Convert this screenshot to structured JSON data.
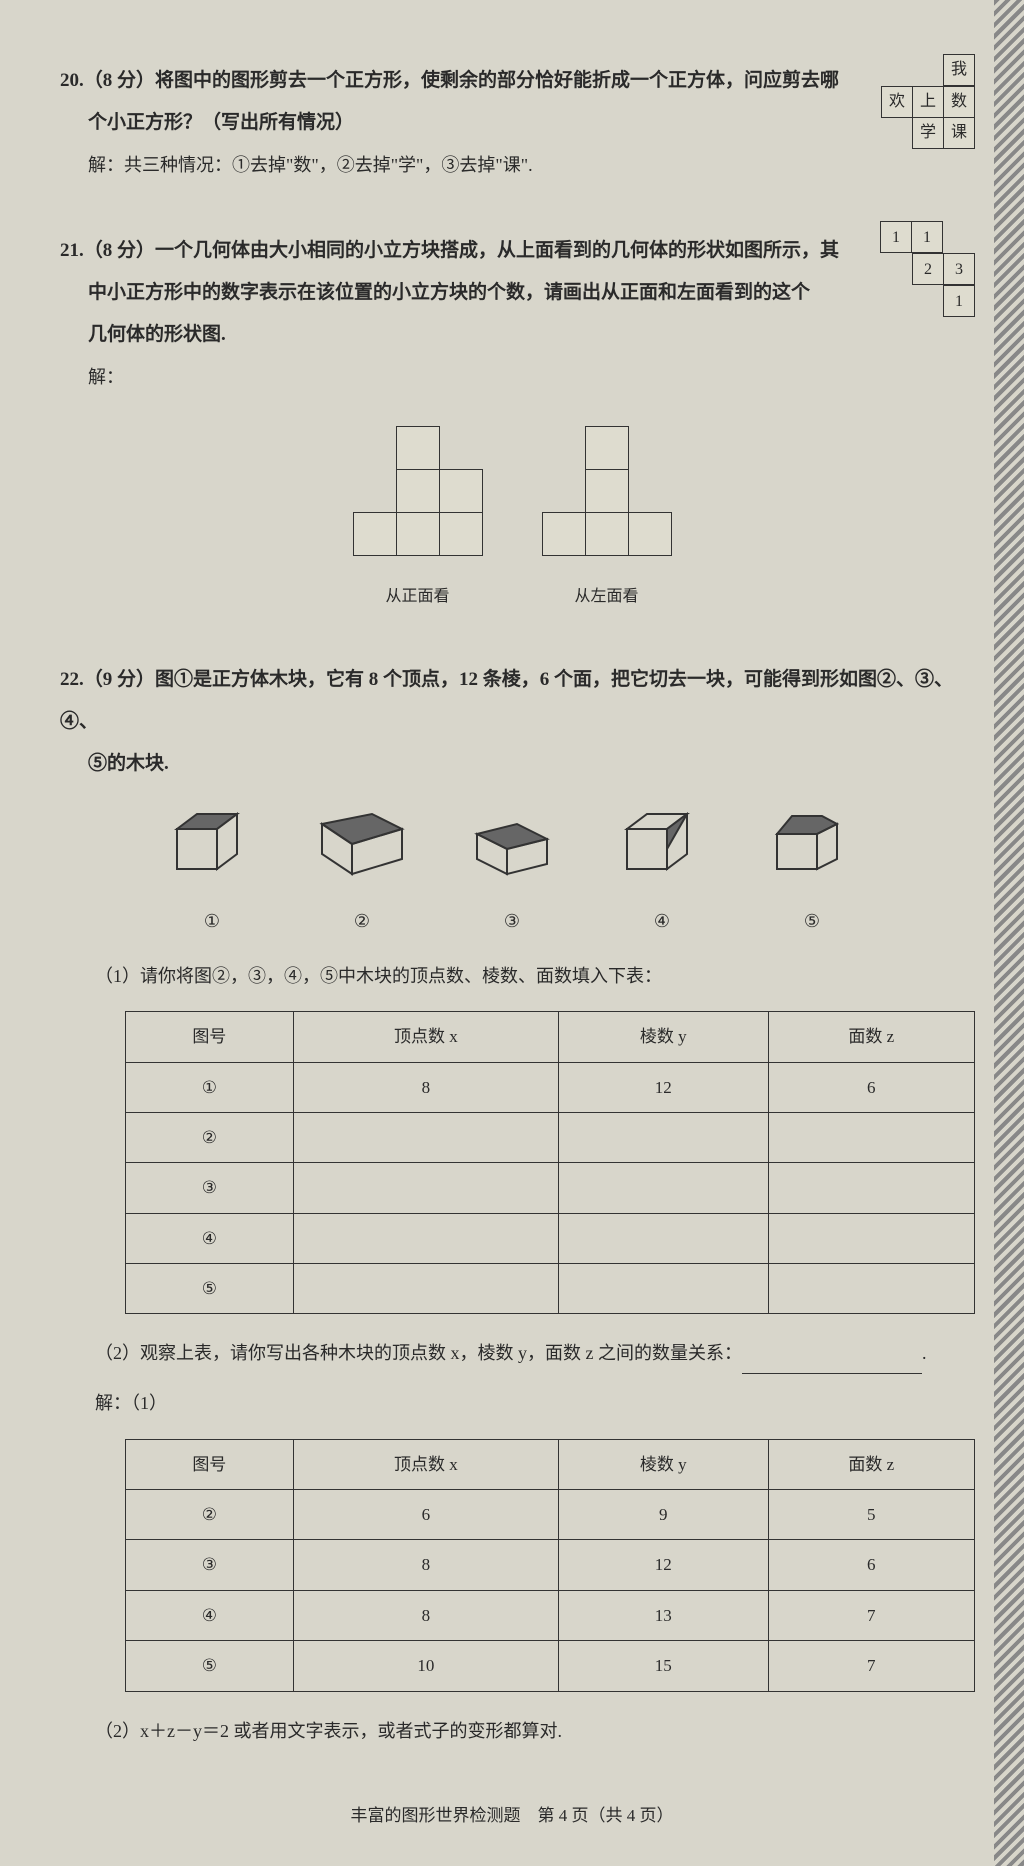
{
  "q20": {
    "text": "20.（8 分）将图中的图形剪去一个正方形，使剩余的部分恰好能折成一个正方体，问应剪去哪",
    "text_line2": "个小正方形？（写出所有情况）",
    "solution": "解：共三种情况：①去掉\"数\"，②去掉\"学\"，③去掉\"课\".",
    "grid": {
      "row1": [
        "",
        "",
        "我"
      ],
      "row2": [
        "欢",
        "上",
        "数"
      ],
      "row3": [
        "",
        "学",
        "课"
      ]
    }
  },
  "q21": {
    "text": "21.（8 分）一个几何体由大小相同的小立方块搭成，从上面看到的几何体的形状如图所示，其",
    "text_line2": "中小正方形中的数字表示在该位置的小立方块的个数，请画出从正面和左面看到的这个",
    "text_line3": "几何体的形状图.",
    "solution_label": "解：",
    "grid": {
      "r1": [
        "1",
        "1",
        ""
      ],
      "r2": [
        "",
        "2",
        "3"
      ],
      "r3": [
        "",
        "",
        "1"
      ]
    },
    "view1_label": "从正面看",
    "view2_label": "从左面看"
  },
  "q22": {
    "text": "22.（9 分）图①是正方体木块，它有 8 个顶点，12 条棱，6 个面，把它切去一块，可能得到形如图②、③、④、",
    "text_line2": "⑤的木块.",
    "cube_labels": [
      "①",
      "②",
      "③",
      "④",
      "⑤"
    ],
    "sub1": "（1）请你将图②，③，④，⑤中木块的顶点数、棱数、面数填入下表：",
    "table1": {
      "headers": [
        "图号",
        "顶点数 x",
        "棱数 y",
        "面数 z"
      ],
      "rows": [
        [
          "①",
          "8",
          "12",
          "6"
        ],
        [
          "②",
          "",
          "",
          ""
        ],
        [
          "③",
          "",
          "",
          ""
        ],
        [
          "④",
          "",
          "",
          ""
        ],
        [
          "⑤",
          "",
          "",
          ""
        ]
      ]
    },
    "sub2_prefix": "（2）观察上表，请你写出各种木块的顶点数 x，棱数 y，面数 z 之间的数量关系：",
    "sub2_suffix": ".",
    "solution_label": "解：（1）",
    "table2": {
      "headers": [
        "图号",
        "顶点数 x",
        "棱数 y",
        "面数 z"
      ],
      "rows": [
        [
          "②",
          "6",
          "9",
          "5"
        ],
        [
          "③",
          "8",
          "12",
          "6"
        ],
        [
          "④",
          "8",
          "13",
          "7"
        ],
        [
          "⑤",
          "10",
          "15",
          "7"
        ]
      ]
    },
    "sub2_answer": "（2）x＋z－y＝2 或者用文字表示，或者式子的变形都算对."
  },
  "footer": "丰富的图形世界检测题　第 4 页（共 4 页）",
  "colors": {
    "bg": "#d8d6cb",
    "text": "#2a2a2a",
    "border": "#333333"
  }
}
